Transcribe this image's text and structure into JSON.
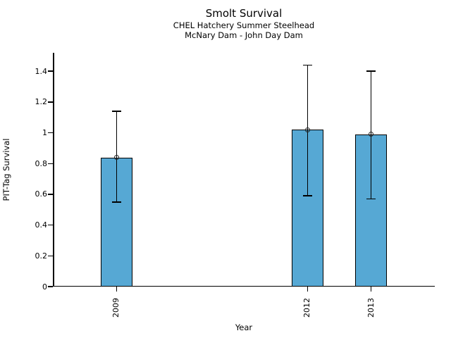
{
  "title": "Smolt Survival",
  "subtitle_line1": "CHEL Hatchery Summer Steelhead",
  "subtitle_line2": "McNary Dam - John Day Dam",
  "chart_data": {
    "type": "bar",
    "title": "Smolt Survival",
    "subtitles": [
      "CHEL Hatchery Summer Steelhead",
      "McNary Dam - John Day Dam"
    ],
    "xlabel": "Year",
    "ylabel": "PIT-Tag Survival",
    "categories": [
      2009,
      2012,
      2013
    ],
    "category_labels": [
      "2009",
      "2012",
      "2013"
    ],
    "values": [
      0.84,
      1.02,
      0.99
    ],
    "error_low": [
      0.55,
      0.59,
      0.57
    ],
    "error_high": [
      1.14,
      1.44,
      1.4
    ],
    "xlim": [
      2008,
      2014
    ],
    "ylim": [
      0,
      1.52
    ],
    "yticks": [
      0,
      0.2,
      0.4,
      0.6,
      0.8,
      1,
      1.2,
      1.4
    ],
    "ytick_labels": [
      "0",
      "0.2",
      "0.4",
      "0.6",
      "0.8",
      "1",
      "1.2",
      "1.4"
    ],
    "bar_width_years": 0.5,
    "bar_color": "#56a8d4",
    "bar_edge_color": "#000000",
    "error_color": "#000000",
    "marker": "open-circle",
    "grid": false,
    "legend": null
  }
}
